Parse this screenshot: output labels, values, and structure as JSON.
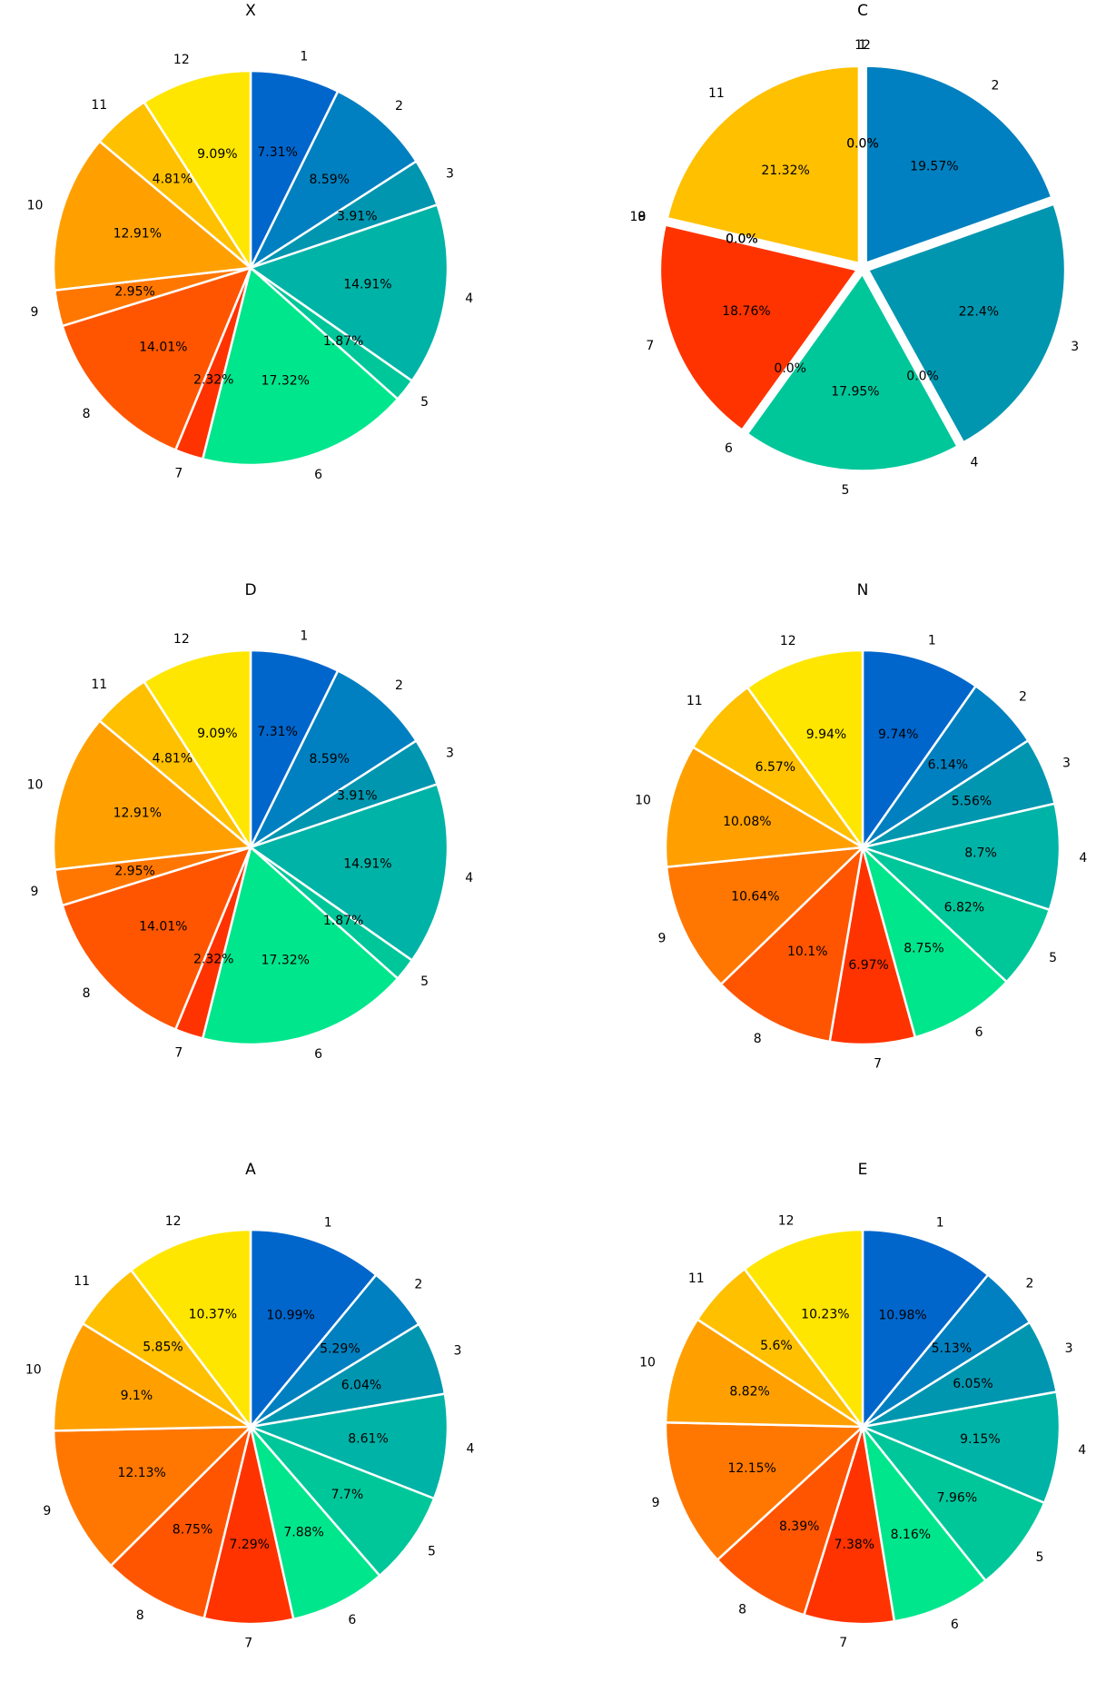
{
  "palette": [
    "#0066cc",
    "#0080c0",
    "#0096b0",
    "#00b3a7",
    "#00c79a",
    "#00e68c",
    "#ff3300",
    "#ff5500",
    "#ff7700",
    "#ffa000",
    "#ffc000",
    "#ffe600"
  ],
  "chart_data": [
    {
      "type": "pie",
      "title": "X",
      "categories": [
        "1",
        "2",
        "3",
        "4",
        "5",
        "6",
        "7",
        "8",
        "9",
        "10",
        "11",
        "12"
      ],
      "values": [
        7.31,
        8.59,
        3.91,
        14.91,
        1.87,
        17.32,
        2.32,
        14.01,
        2.95,
        12.91,
        4.81,
        9.09
      ],
      "labels": [
        "7.31%",
        "8.59%",
        "3.91%",
        "14.91%",
        "1.87%",
        "17.32%",
        "2.32%",
        "14.01%",
        "2.95%",
        "12.91%",
        "4.81%",
        "9.09%"
      ],
      "start_angle": 90,
      "direction": "clockwise",
      "explode": 0
    },
    {
      "type": "pie",
      "title": "C",
      "categories": [
        "1",
        "2",
        "3",
        "4",
        "5",
        "6",
        "7",
        "8",
        "9",
        "10",
        "11",
        "12"
      ],
      "values": [
        0.0,
        19.57,
        22.4,
        0.0,
        17.95,
        0.0,
        18.76,
        0.0,
        0.0,
        0.0,
        21.32,
        0.0
      ],
      "labels": [
        "0.0%",
        "19.57%",
        "22.4%",
        "0.0%",
        "17.95%",
        "0.0%",
        "18.76%",
        "0.0%",
        "0.0%",
        "0.0%",
        "21.32%",
        "0.0%"
      ],
      "start_angle": 90,
      "direction": "clockwise",
      "explode": 0.03
    },
    {
      "type": "pie",
      "title": "D",
      "categories": [
        "1",
        "2",
        "3",
        "4",
        "5",
        "6",
        "7",
        "8",
        "9",
        "10",
        "11",
        "12"
      ],
      "values": [
        7.31,
        8.59,
        3.91,
        14.91,
        1.87,
        17.32,
        2.32,
        14.01,
        2.95,
        12.91,
        4.81,
        9.09
      ],
      "labels": [
        "7.31%",
        "8.59%",
        "3.91%",
        "14.91%",
        "1.87%",
        "17.32%",
        "2.32%",
        "14.01%",
        "2.95%",
        "12.91%",
        "4.81%",
        "9.09%"
      ],
      "start_angle": 90,
      "direction": "clockwise",
      "explode": 0
    },
    {
      "type": "pie",
      "title": "N",
      "categories": [
        "1",
        "2",
        "3",
        "4",
        "5",
        "6",
        "7",
        "8",
        "9",
        "10",
        "11",
        "12"
      ],
      "values": [
        9.74,
        6.14,
        5.56,
        8.7,
        6.82,
        8.75,
        6.97,
        10.1,
        10.64,
        10.08,
        6.57,
        9.94
      ],
      "labels": [
        "9.74%",
        "6.14%",
        "5.56%",
        "8.7%",
        "6.82%",
        "8.75%",
        "6.97%",
        "10.1%",
        "10.64%",
        "10.08%",
        "6.57%",
        "9.94%"
      ],
      "start_angle": 90,
      "direction": "clockwise",
      "explode": 0
    },
    {
      "type": "pie",
      "title": "A",
      "categories": [
        "1",
        "2",
        "3",
        "4",
        "5",
        "6",
        "7",
        "8",
        "9",
        "10",
        "11",
        "12"
      ],
      "values": [
        10.99,
        5.29,
        6.04,
        8.61,
        7.7,
        7.88,
        7.29,
        8.75,
        12.13,
        9.1,
        5.85,
        10.37
      ],
      "labels": [
        "10.99%",
        "5.29%",
        "6.04%",
        "8.61%",
        "7.7%",
        "7.88%",
        "7.29%",
        "8.75%",
        "12.13%",
        "9.1%",
        "5.85%",
        "10.37%"
      ],
      "start_angle": 90,
      "direction": "clockwise",
      "explode": 0
    },
    {
      "type": "pie",
      "title": "E",
      "categories": [
        "1",
        "2",
        "3",
        "4",
        "5",
        "6",
        "7",
        "8",
        "9",
        "10",
        "11",
        "12"
      ],
      "values": [
        10.98,
        5.13,
        6.05,
        9.15,
        7.96,
        8.16,
        7.38,
        8.39,
        12.15,
        8.82,
        5.6,
        10.23
      ],
      "labels": [
        "10.98%",
        "5.13%",
        "6.05%",
        "9.15%",
        "7.96%",
        "8.16%",
        "7.38%",
        "8.39%",
        "12.15%",
        "8.82%",
        "5.6%",
        "10.23%"
      ],
      "start_angle": 90,
      "direction": "clockwise",
      "explode": 0
    }
  ]
}
